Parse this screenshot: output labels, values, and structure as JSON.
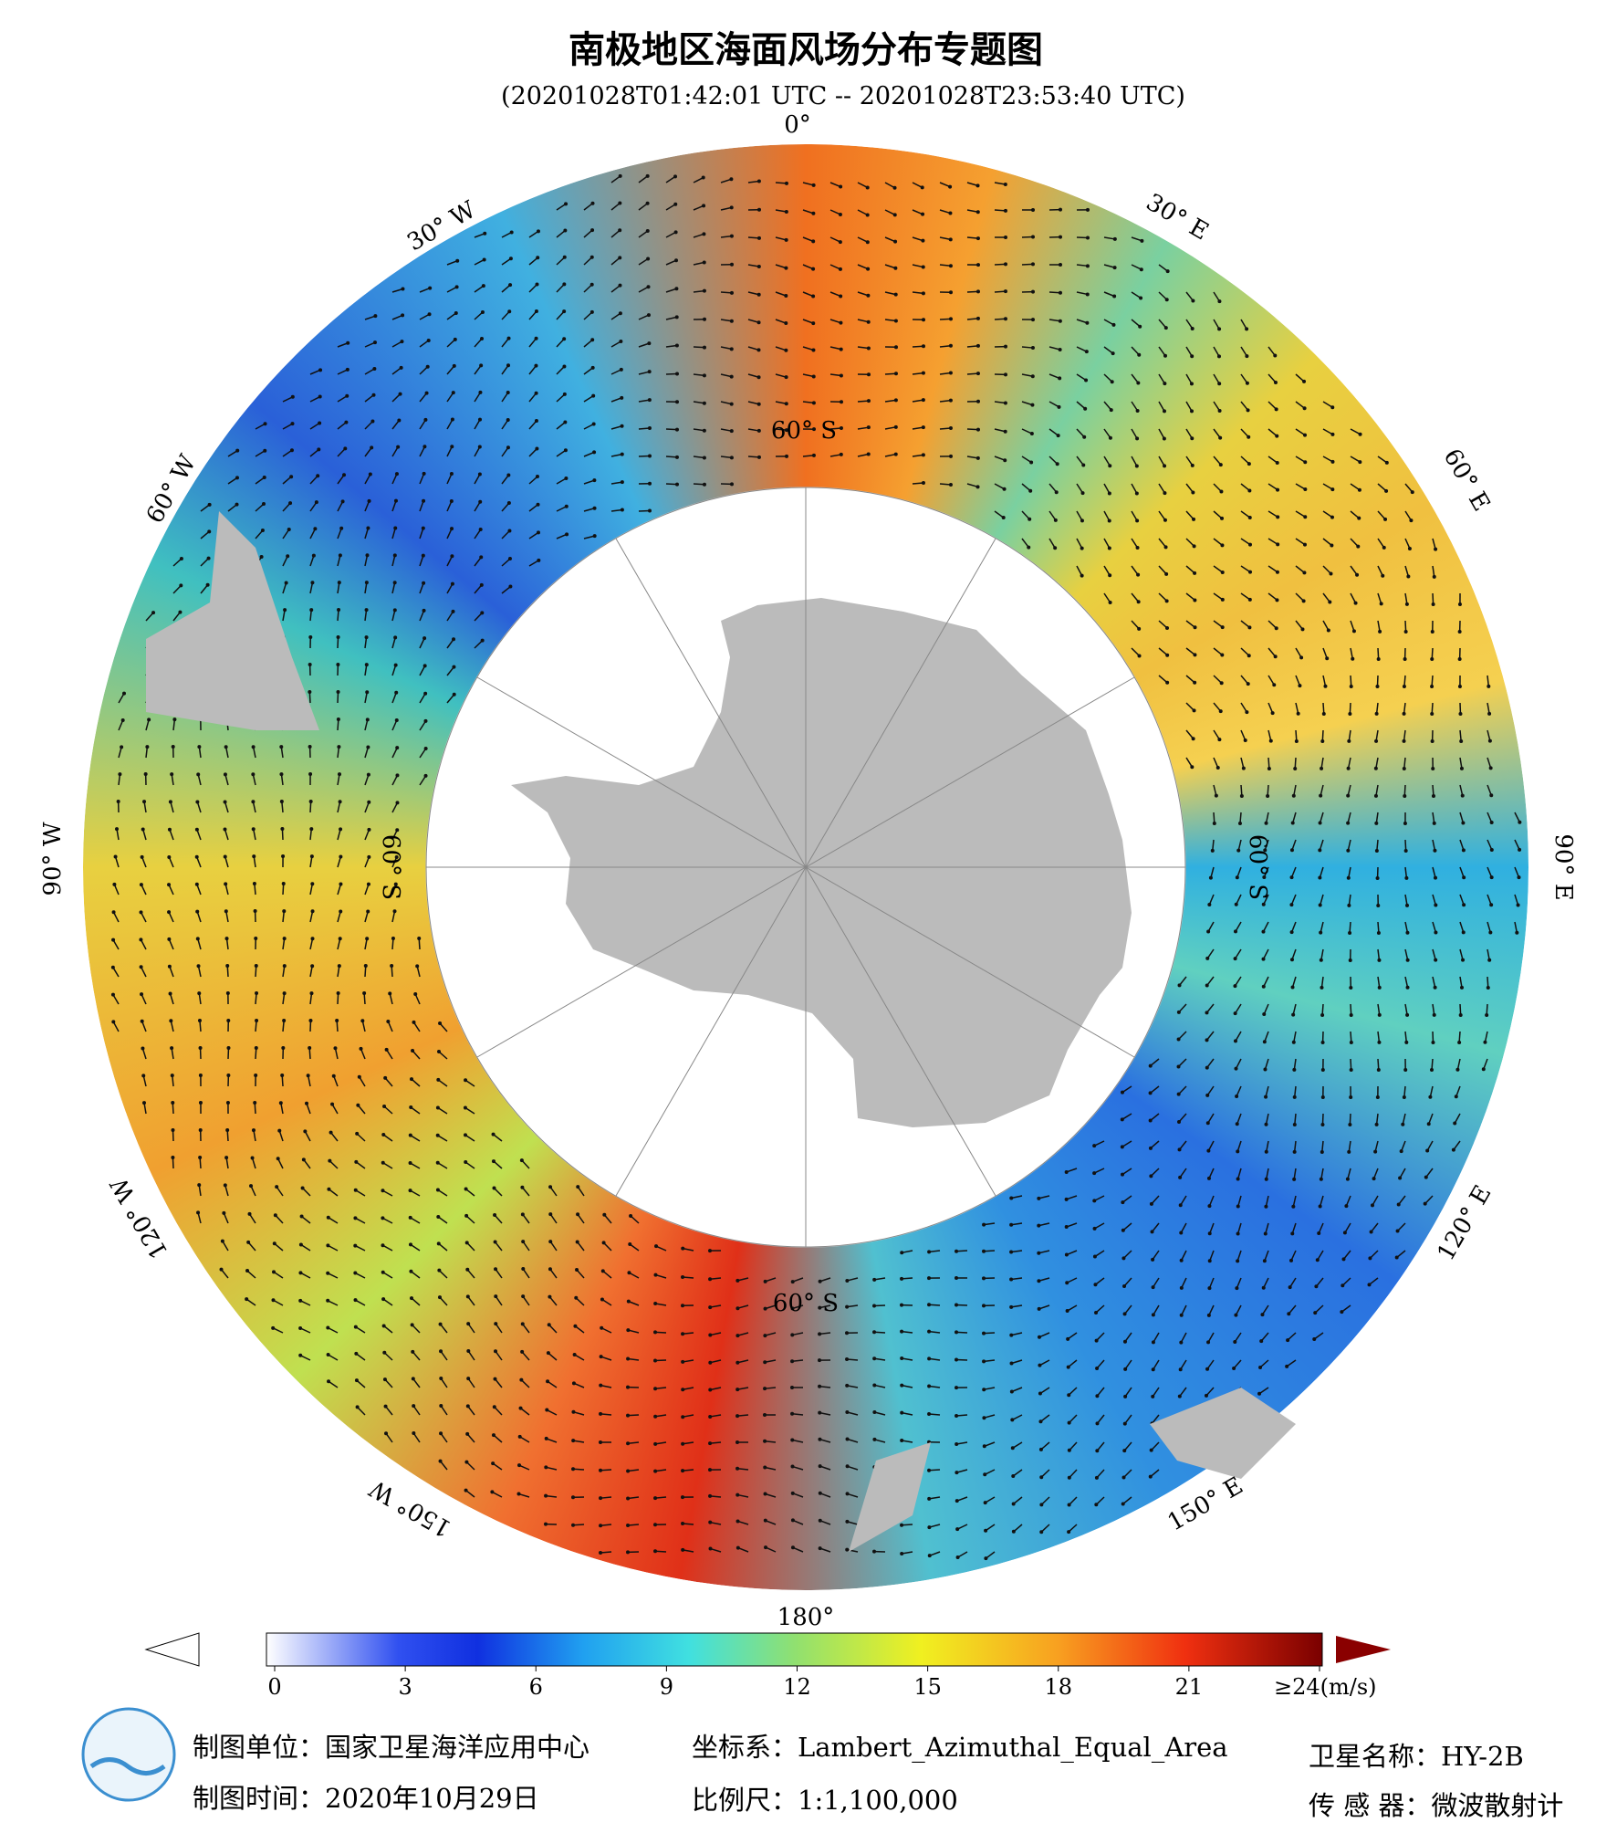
{
  "header": {
    "title": "南极地区海面风场分布专题图",
    "subtitle": "(20201028T01:42:01 UTC -- 20201028T23:53:40 UTC)"
  },
  "map": {
    "lon_labels": [
      "0°",
      "30° E",
      "60° E",
      "90° E",
      "120° E",
      "150° E",
      "180°",
      "150° W",
      "120° W",
      "90° W",
      "60° W",
      "30° W"
    ],
    "lat_labels": [
      "60° S",
      "60° S",
      "60° S",
      "60° S"
    ]
  },
  "colorbar": {
    "ticks": [
      0,
      3,
      6,
      9,
      12,
      15,
      18,
      21,
      {
        "value": 24,
        "label": "≥24(m/s)"
      }
    ],
    "lim": [
      0,
      24
    ]
  },
  "footer": {
    "unit": "制图单位：国家卫星海洋应用中心",
    "time": "制图时间：2020年10月29日",
    "crs": "坐标系：Lambert_Azimuthal_Equal_Area",
    "scale": "比例尺：1:1,100,000",
    "satellite": "卫星名称：HY-2B",
    "sensor": "传 感 器：微波散射计"
  }
}
